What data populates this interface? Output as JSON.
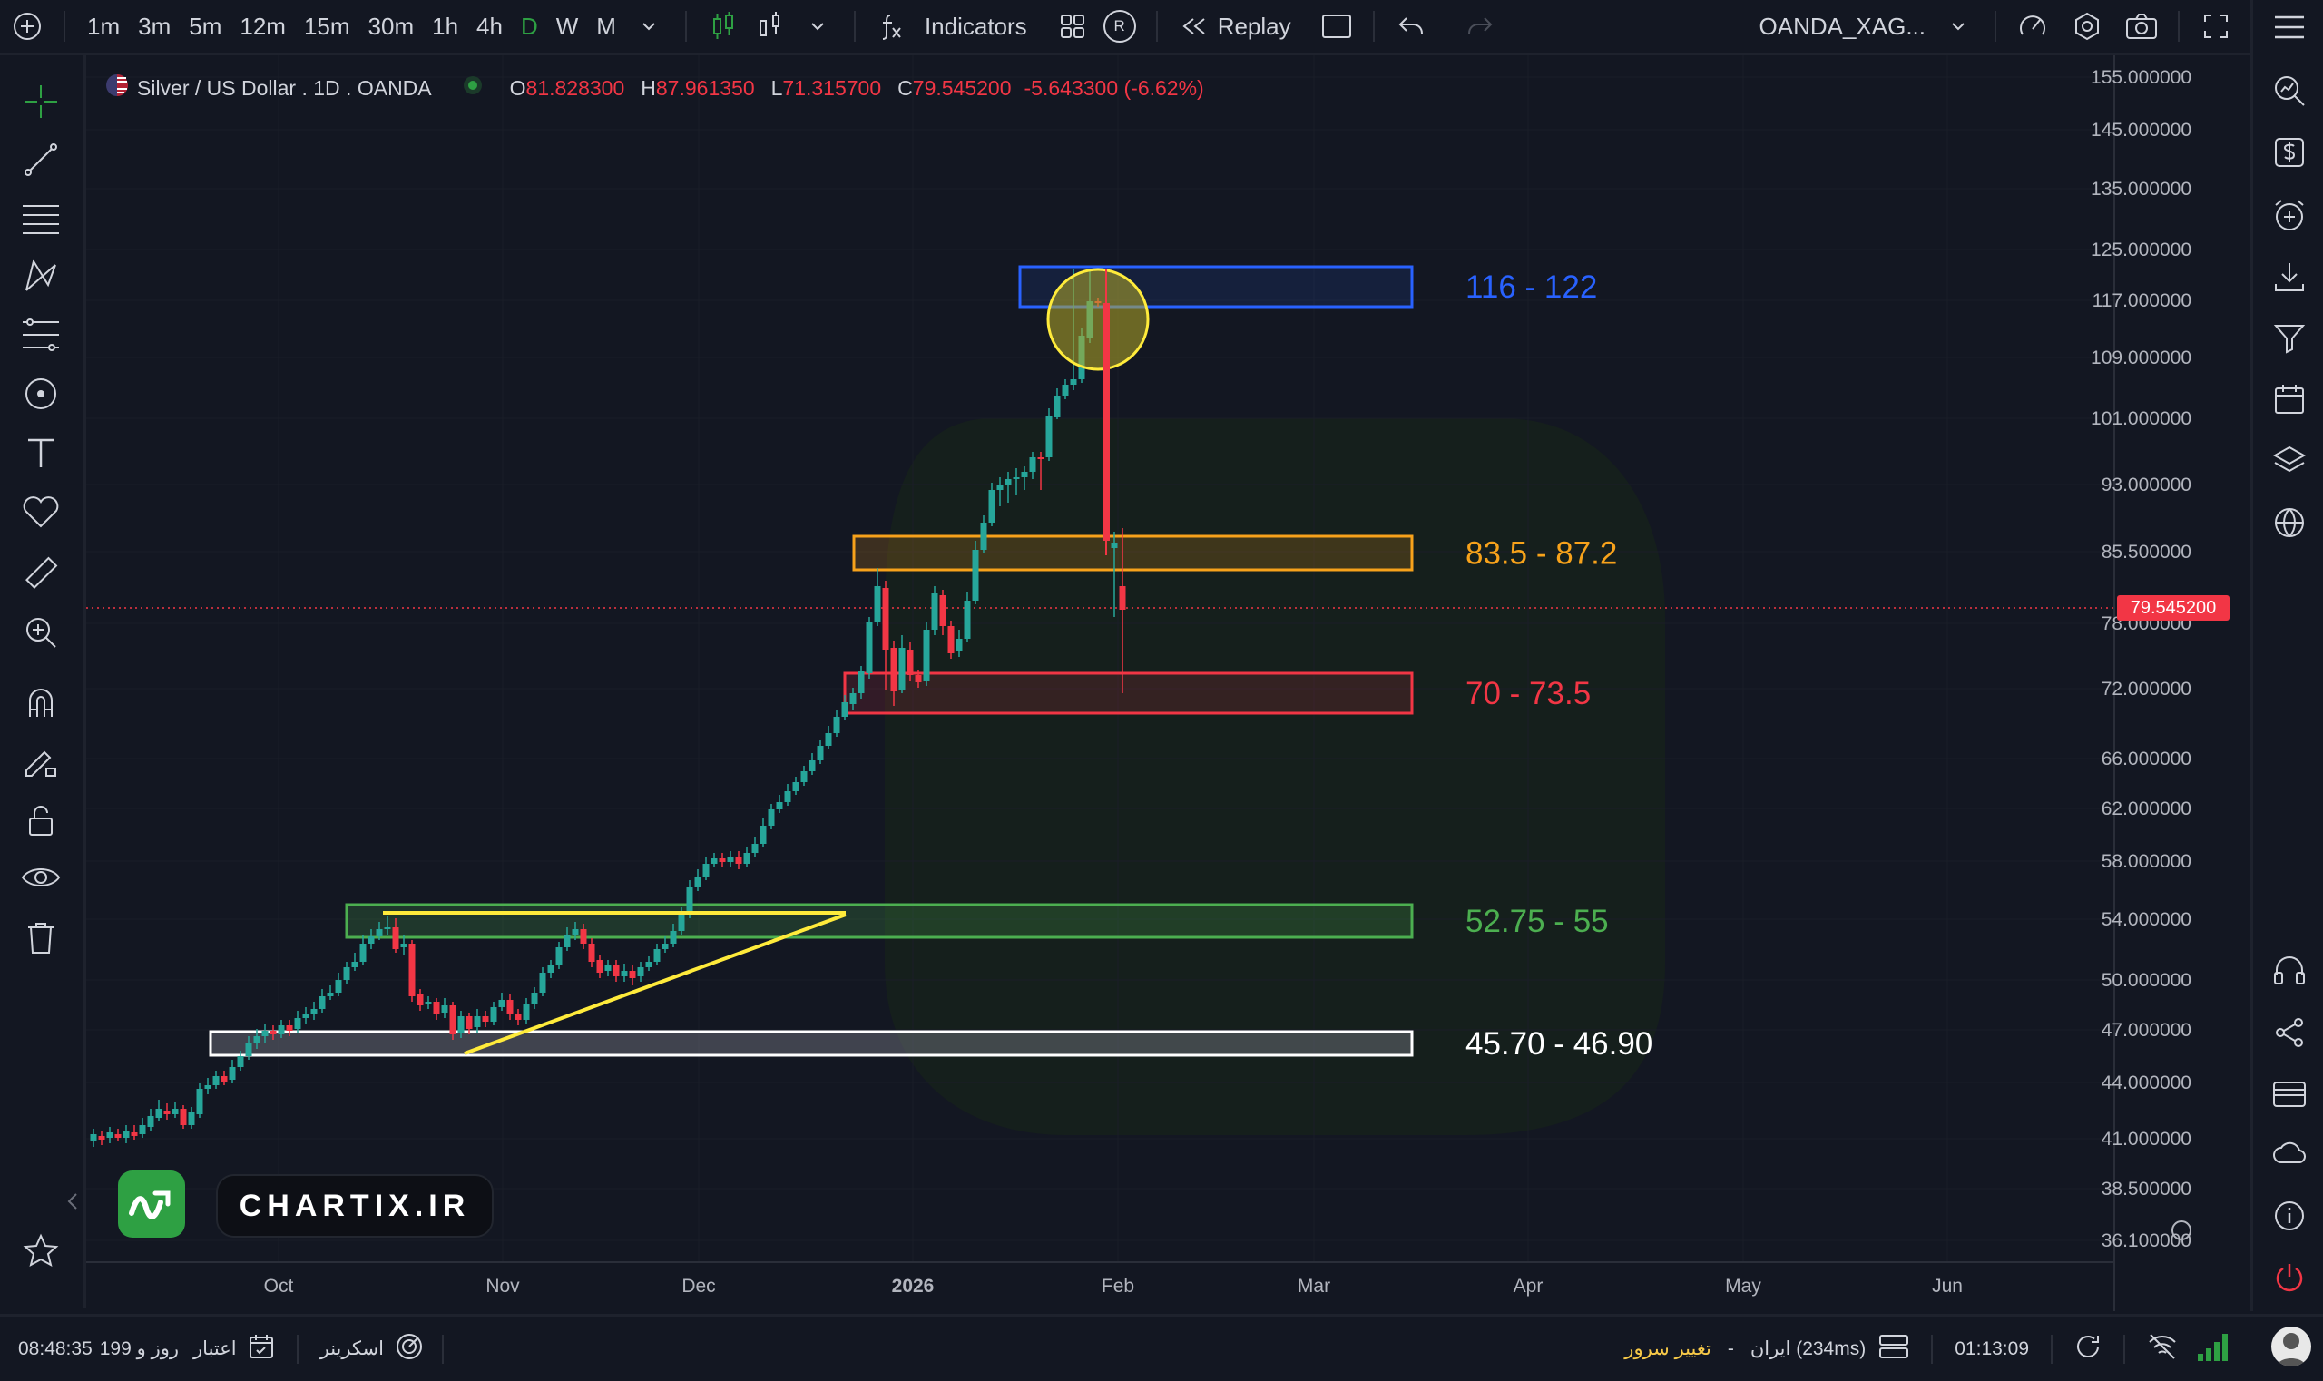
{
  "topbar": {
    "timeframes": [
      "1m",
      "3m",
      "5m",
      "12m",
      "15m",
      "30m",
      "1h",
      "4h",
      "D",
      "W",
      "M"
    ],
    "active_timeframe": "D",
    "indicators_label": "Indicators",
    "replay_label": "Replay",
    "r_badge": "R",
    "symbol_select": "OANDA_XAG..."
  },
  "legend": {
    "symbol": "Silver / US Dollar . 1D . OANDA",
    "open_key": "O",
    "open_val": "81.828300",
    "high_key": "H",
    "high_val": "87.961350",
    "low_key": "L",
    "low_val": "71.315700",
    "close_key": "C",
    "close_val": "79.545200",
    "change": "-5.643300 (-6.62%)"
  },
  "price_axis": [
    "155.000000",
    "145.000000",
    "135.000000",
    "125.000000",
    "117.000000",
    "109.000000",
    "101.000000",
    "93.000000",
    "85.500000",
    "78.000000",
    "72.000000",
    "66.000000",
    "62.000000",
    "58.000000",
    "54.000000",
    "50.000000",
    "47.000000",
    "44.000000",
    "41.000000",
    "38.500000",
    "36.100000"
  ],
  "current_price_label": "79.545200",
  "time_axis": [
    "Oct",
    "Nov",
    "Dec",
    "2026",
    "Feb",
    "Mar",
    "Apr",
    "May",
    "Jun"
  ],
  "zones": [
    {
      "label": "116 - 122",
      "color": "#2962ff"
    },
    {
      "label": "83.5 - 87.2",
      "color": "#f7a21b"
    },
    {
      "label": "70 - 73.5",
      "color": "#f23645"
    },
    {
      "label": "52.75 - 55",
      "color": "#4caf50"
    },
    {
      "label": "45.70 - 46.90",
      "color": "#ffffff"
    }
  ],
  "watermark": {
    "text": "CHARTIX.IR"
  },
  "bottombar": {
    "time_left": "08:48:35",
    "credit_text": "199 روز و",
    "credit_label": "اعتبار",
    "screener_label": "اسکرینر",
    "change_server": "تغییر سرور",
    "dash": "-",
    "server": "ایران (234ms)",
    "clock": "01:13:09"
  },
  "colors": {
    "up": "#26a69a",
    "down": "#f23645",
    "bg": "#131722",
    "accent": "#2ea043",
    "highlight": "#ffeb3b"
  }
}
